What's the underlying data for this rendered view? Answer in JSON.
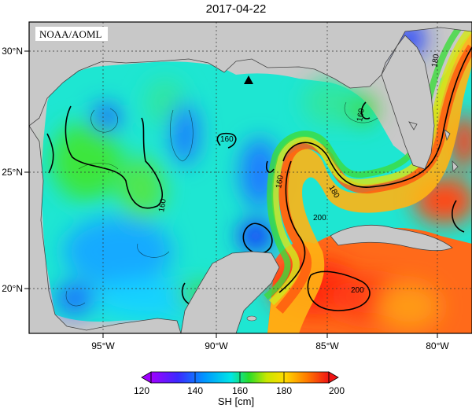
{
  "title": "2017-04-22",
  "credit": "NOAA/AOML",
  "map": {
    "lat_labels": [
      "30°N",
      "25°N",
      "20°N"
    ],
    "lon_labels": [
      "95°W",
      "90°W",
      "85°W",
      "80°W"
    ],
    "contour_labels": [
      "160",
      "160",
      "160",
      "160",
      "180",
      "180",
      "200",
      "200"
    ],
    "marker": "triangle",
    "land_color": "#c8c8c8",
    "grid": true
  },
  "colorbar": {
    "label": "SH [cm]",
    "ticks": [
      "120",
      "140",
      "160",
      "180",
      "200"
    ],
    "colors": [
      "#a000ff",
      "#3c28ff",
      "#0096ff",
      "#00e6e6",
      "#28dc28",
      "#c8e600",
      "#ffdc00",
      "#ff7800",
      "#f01414"
    ]
  }
}
